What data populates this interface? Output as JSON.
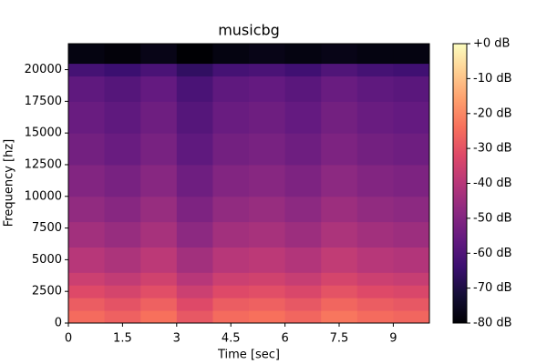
{
  "chart_data": {
    "type": "heatmap",
    "title": "musicbg",
    "x_label": "Time [sec]",
    "y_label": "Frequency [hz]",
    "colormap": "magma",
    "x": [
      0,
      1,
      2,
      3,
      4,
      5,
      6,
      7,
      8,
      9,
      10
    ],
    "y": [
      0,
      1000,
      2000,
      3000,
      4000,
      6000,
      8000,
      10000,
      12500,
      15000,
      17500,
      19500,
      20500,
      22050
    ],
    "z": [
      [
        -25,
        -27,
        -24,
        -29,
        -25,
        -24,
        -26,
        -23,
        -25,
        -26
      ],
      [
        -28,
        -30,
        -27,
        -32,
        -28,
        -27,
        -29,
        -26,
        -28,
        -29
      ],
      [
        -32,
        -34,
        -31,
        -36,
        -32,
        -31,
        -33,
        -30,
        -32,
        -33
      ],
      [
        -36,
        -38,
        -35,
        -40,
        -36,
        -35,
        -37,
        -34,
        -36,
        -37
      ],
      [
        -40,
        -42,
        -39,
        -44,
        -40,
        -39,
        -41,
        -38,
        -40,
        -41
      ],
      [
        -44,
        -46,
        -43,
        -48,
        -44,
        -43,
        -45,
        -42,
        -44,
        -45
      ],
      [
        -47,
        -49,
        -46,
        -51,
        -47,
        -46,
        -48,
        -45,
        -47,
        -48
      ],
      [
        -50,
        -52,
        -49,
        -54,
        -50,
        -49,
        -51,
        -48,
        -50,
        -51
      ],
      [
        -53,
        -55,
        -52,
        -57,
        -53,
        -52,
        -54,
        -51,
        -53,
        -54
      ],
      [
        -55,
        -57,
        -54,
        -59,
        -55,
        -54,
        -56,
        -53,
        -55,
        -56
      ],
      [
        -57,
        -59,
        -56,
        -61,
        -57,
        -56,
        -58,
        -55,
        -57,
        -58
      ],
      [
        -62,
        -64,
        -61,
        -66,
        -62,
        -61,
        -63,
        -60,
        -62,
        -63
      ],
      [
        -78,
        -79,
        -77,
        -80,
        -78,
        -77,
        -78,
        -77,
        -78,
        -78
      ]
    ],
    "xlim": [
      0,
      10
    ],
    "xticks": [
      0,
      1.5,
      3,
      4.5,
      6,
      7.5,
      9
    ],
    "ylim": [
      0,
      22050
    ],
    "yticks": [
      0,
      2500,
      5000,
      7500,
      10000,
      12500,
      15000,
      17500,
      20000
    ],
    "zlim": [
      -80,
      0
    ],
    "zticks": [
      {
        "value": 0,
        "label": "+0 dB"
      },
      {
        "value": -10,
        "label": "-10 dB"
      },
      {
        "value": -20,
        "label": "-20 dB"
      },
      {
        "value": -30,
        "label": "-30 dB"
      },
      {
        "value": -40,
        "label": "-40 dB"
      },
      {
        "value": -50,
        "label": "-50 dB"
      },
      {
        "value": -60,
        "label": "-60 dB"
      },
      {
        "value": -70,
        "label": "-70 dB"
      },
      {
        "value": -80,
        "label": "-80 dB"
      }
    ]
  }
}
